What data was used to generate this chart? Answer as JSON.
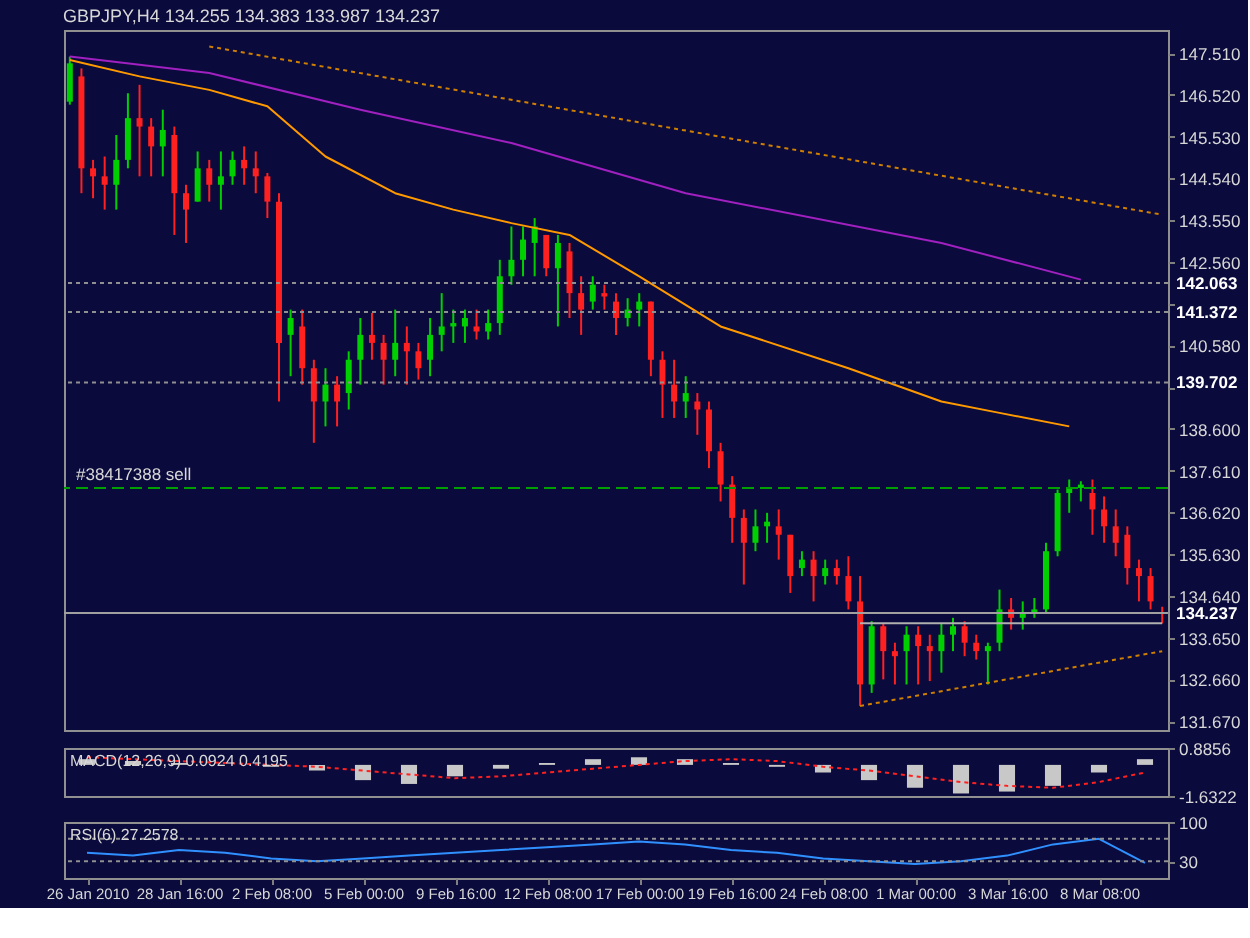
{
  "chart_data": [
    {
      "type": "candlestick",
      "title": "GBPJPY,H4  134.255 134.383 133.987 134.237",
      "tick_labels": "y",
      "categories": [
        null,
        null,
        null,
        null,
        null,
        null,
        null,
        null,
        null,
        null,
        null,
        null,
        null,
        null,
        null,
        null,
        null,
        null,
        null,
        null,
        null,
        null,
        null,
        null,
        null,
        null,
        null,
        null,
        null,
        null,
        null,
        null,
        null,
        null,
        null,
        null,
        null,
        null,
        null,
        null,
        null,
        null,
        null,
        null,
        null,
        null,
        null,
        null,
        null,
        null,
        null,
        null,
        null,
        null,
        null,
        null,
        null,
        null,
        null,
        null,
        null,
        null,
        null,
        null,
        null,
        null,
        null,
        null,
        null,
        null,
        null,
        null,
        null,
        null,
        null,
        null,
        null,
        null,
        null,
        null,
        null,
        null,
        null,
        null,
        null,
        null,
        null,
        null,
        null,
        null,
        null,
        null,
        null,
        null,
        null
      ],
      "colors": [
        "#00d000",
        "#ff2020",
        "#ff2020",
        "#ff2020",
        "#00d000",
        "#00d000",
        "#ff2020",
        "#ff2020",
        "#00d000",
        "#ff2020",
        "#ff2020",
        "#00d000",
        "#ff2020",
        "#00d000",
        "#00d000",
        "#ff2020",
        "#ff2020",
        "#ff2020",
        "#ff2020",
        "#00d000",
        "#ff2020",
        "#ff2020",
        "#00d000",
        "#ff2020",
        "#00d000",
        "#00d000",
        "#ff2020",
        "#ff2020",
        "#00d000",
        "#ff2020",
        "#ff2020",
        "#00d000",
        "#00d000",
        "#00d000",
        "#00d000",
        "#ff2020",
        "#00d000",
        "#00d000",
        "#00d000",
        "#00d000",
        "#00d000",
        "#ff2020",
        "#00d000",
        "#ff2020",
        "#ff2020",
        "#00d000",
        "#ff2020",
        "#ff2020",
        "#00d000",
        "#00d000",
        "#ff2020",
        "#ff2020",
        "#ff2020",
        "#00d000",
        "#ff2020",
        "#ff2020",
        "#ff2020",
        "#ff2020",
        "#ff2020",
        "#00d000",
        "#00d000",
        "#ff2020",
        "#ff2020",
        "#00d000",
        "#ff2020",
        "#00d000",
        "#ff2020",
        "#ff2020",
        "#ff2020",
        "#00d000",
        "#ff2020",
        "#ff2020",
        "#00d000",
        "#ff2020",
        "#ff2020",
        "#00d000",
        "#00d000",
        "#ff2020",
        "#ff2020",
        "#00d000",
        "#00d000",
        "#ff2020",
        "#00d000",
        "#00d000",
        "#00d000",
        "#00d000",
        "#00d000",
        "#00d000",
        "#ff2020",
        "#ff2020",
        "#ff2020",
        "#ff2020",
        "#ff2020",
        "#ff2020",
        "#ff2020"
      ],
      "ohlc": [
        [
          146.36,
          147.43,
          146.29,
          147.27
        ],
        [
          146.96,
          147.15,
          144.19,
          144.78
        ],
        [
          144.78,
          144.98,
          144.07,
          144.59
        ],
        [
          144.59,
          145.06,
          143.8,
          144.39
        ],
        [
          144.39,
          145.57,
          143.8,
          144.98
        ],
        [
          144.98,
          146.56,
          144.78,
          145.97
        ],
        [
          145.97,
          146.76,
          144.59,
          145.77
        ],
        [
          145.77,
          145.97,
          144.59,
          145.3
        ],
        [
          145.3,
          146.17,
          144.59,
          145.69
        ],
        [
          145.57,
          145.77,
          143.2,
          144.19
        ],
        [
          144.19,
          144.39,
          143.01,
          143.8
        ],
        [
          143.99,
          145.18,
          143.99,
          144.78
        ],
        [
          144.78,
          144.98,
          143.99,
          144.39
        ],
        [
          144.39,
          145.18,
          143.8,
          144.59
        ],
        [
          144.59,
          145.18,
          144.39,
          144.98
        ],
        [
          144.98,
          145.3,
          144.39,
          144.78
        ],
        [
          144.78,
          145.18,
          144.19,
          144.59
        ],
        [
          144.59,
          144.67,
          143.6,
          143.99
        ],
        [
          143.99,
          144.19,
          139.25,
          140.64
        ],
        [
          140.83,
          141.43,
          139.85,
          141.23
        ],
        [
          141.03,
          141.43,
          139.65,
          140.04
        ],
        [
          140.04,
          140.24,
          138.27,
          139.25
        ],
        [
          139.25,
          140.04,
          138.66,
          139.65
        ],
        [
          139.65,
          139.85,
          138.66,
          139.25
        ],
        [
          139.45,
          140.44,
          139.06,
          140.24
        ],
        [
          140.24,
          141.23,
          139.65,
          140.83
        ],
        [
          140.83,
          141.35,
          140.24,
          140.64
        ],
        [
          140.64,
          140.83,
          139.65,
          140.24
        ],
        [
          140.24,
          141.43,
          139.85,
          140.64
        ],
        [
          140.64,
          141.03,
          139.65,
          140.44
        ],
        [
          140.44,
          140.64,
          139.77,
          140.04
        ],
        [
          140.24,
          141.23,
          139.85,
          140.83
        ],
        [
          140.83,
          141.82,
          140.44,
          141.03
        ],
        [
          141.03,
          141.43,
          140.64,
          141.11
        ],
        [
          141.03,
          141.43,
          140.64,
          141.23
        ],
        [
          141.03,
          141.43,
          140.72,
          140.91
        ],
        [
          140.91,
          141.43,
          140.72,
          141.11
        ],
        [
          141.11,
          142.61,
          140.83,
          142.22
        ],
        [
          142.22,
          143.4,
          142.02,
          142.61
        ],
        [
          142.61,
          143.4,
          142.22,
          143.09
        ],
        [
          143.01,
          143.6,
          142.22,
          143.4
        ],
        [
          143.2,
          143.2,
          142.22,
          142.41
        ],
        [
          142.41,
          143.2,
          141.03,
          143.01
        ],
        [
          142.81,
          143.01,
          141.23,
          141.82
        ],
        [
          141.82,
          142.22,
          140.83,
          141.43
        ],
        [
          141.62,
          142.22,
          141.43,
          142.02
        ],
        [
          141.82,
          142.02,
          141.43,
          141.74
        ],
        [
          141.62,
          141.82,
          140.83,
          141.23
        ],
        [
          141.23,
          141.7,
          141.03,
          141.43
        ],
        [
          141.43,
          141.82,
          141.03,
          141.62
        ],
        [
          141.62,
          141.62,
          139.85,
          140.24
        ],
        [
          140.24,
          140.44,
          138.86,
          139.65
        ],
        [
          139.65,
          140.24,
          138.86,
          139.25
        ],
        [
          139.25,
          139.85,
          138.86,
          139.45
        ],
        [
          139.25,
          139.45,
          138.46,
          139.06
        ],
        [
          139.06,
          139.25,
          137.67,
          138.07
        ],
        [
          138.07,
          138.27,
          136.88,
          137.28
        ],
        [
          137.28,
          137.48,
          135.9,
          136.49
        ],
        [
          136.49,
          136.69,
          134.91,
          135.9
        ],
        [
          135.9,
          136.69,
          135.7,
          136.29
        ],
        [
          136.29,
          136.61,
          135.9,
          136.4
        ],
        [
          136.29,
          136.69,
          135.5,
          136.09
        ],
        [
          136.09,
          136.09,
          134.71,
          135.11
        ],
        [
          135.3,
          135.7,
          135.11,
          135.5
        ],
        [
          135.5,
          135.7,
          134.51,
          135.11
        ],
        [
          135.11,
          135.5,
          134.91,
          135.3
        ],
        [
          135.3,
          135.5,
          134.91,
          135.11
        ],
        [
          135.11,
          135.58,
          134.32,
          134.51
        ],
        [
          134.51,
          135.11,
          132.03,
          132.54
        ],
        [
          132.54,
          134.04,
          132.34,
          133.92
        ],
        [
          133.92,
          134.0,
          132.66,
          133.33
        ],
        [
          133.33,
          133.53,
          132.54,
          133.21
        ],
        [
          133.33,
          133.92,
          132.54,
          133.72
        ],
        [
          133.72,
          133.92,
          132.54,
          133.45
        ],
        [
          133.45,
          133.72,
          132.62,
          133.33
        ],
        [
          133.33,
          134.0,
          132.82,
          133.72
        ],
        [
          133.72,
          134.12,
          133.33,
          133.92
        ],
        [
          133.92,
          134.04,
          133.21,
          133.53
        ],
        [
          133.53,
          133.72,
          133.13,
          133.33
        ],
        [
          133.33,
          133.53,
          132.54,
          133.45
        ],
        [
          133.53,
          134.79,
          133.33,
          134.32
        ],
        [
          134.32,
          134.59,
          133.84,
          134.12
        ],
        [
          134.12,
          134.51,
          133.84,
          134.24
        ],
        [
          134.24,
          134.59,
          134.12,
          134.32
        ],
        [
          134.32,
          135.9,
          134.24,
          135.7
        ],
        [
          135.7,
          137.16,
          135.58,
          137.08
        ],
        [
          137.08,
          137.4,
          136.61,
          137.2
        ],
        [
          137.2,
          137.36,
          136.88,
          137.28
        ],
        [
          137.08,
          137.4,
          136.09,
          136.69
        ],
        [
          136.69,
          137.0,
          135.9,
          136.29
        ],
        [
          136.29,
          136.69,
          135.58,
          135.9
        ],
        [
          136.09,
          136.29,
          134.91,
          135.3
        ],
        [
          135.3,
          135.5,
          134.51,
          135.11
        ],
        [
          135.11,
          135.3,
          134.32,
          134.51
        ],
        [
          134.255,
          134.383,
          133.987,
          134.237
        ]
      ],
      "series": [
        {
          "type": "line",
          "color": "#ff9900",
          "line_style": "solid",
          "values": [
            147.35,
            null,
            null,
            null,
            null,
            null,
            146.96,
            null,
            null,
            null,
            null,
            null,
            146.64,
            null,
            null,
            null,
            null,
            146.25,
            null,
            null,
            null,
            null,
            145.06,
            null,
            null,
            null,
            null,
            null,
            144.19,
            null,
            null,
            null,
            null,
            143.8,
            null,
            null,
            null,
            null,
            143.48,
            null,
            null,
            null,
            null,
            143.2,
            null,
            null,
            null,
            null,
            null,
            142.22,
            null,
            null,
            null,
            null,
            null,
            null,
            141.03,
            null,
            null,
            null,
            null,
            null,
            null,
            null,
            null,
            null,
            null,
            140.04,
            null,
            null,
            null,
            null,
            null,
            null,
            null,
            139.25,
            null,
            null,
            null,
            null,
            138.98,
            null,
            null,
            null,
            null,
            null,
            138.66,
            null,
            null,
            null,
            null,
            null,
            null,
            null,
            null
          ]
        },
        {
          "type": "line",
          "color": "#a020c0",
          "line_style": "solid",
          "values": [
            147.43,
            null,
            null,
            null,
            null,
            null,
            null,
            null,
            null,
            null,
            null,
            null,
            147.04,
            null,
            null,
            null,
            null,
            null,
            null,
            null,
            null,
            null,
            null,
            null,
            null,
            146.17,
            null,
            null,
            null,
            null,
            null,
            null,
            null,
            null,
            null,
            null,
            null,
            null,
            145.38,
            null,
            null,
            null,
            null,
            null,
            null,
            null,
            null,
            null,
            null,
            null,
            null,
            null,
            null,
            144.19,
            null,
            null,
            null,
            null,
            null,
            null,
            null,
            null,
            null,
            null,
            null,
            null,
            null,
            null,
            null,
            null,
            null,
            null,
            null,
            null,
            null,
            143.01,
            null,
            null,
            null,
            null,
            null,
            null,
            null,
            null,
            null,
            null,
            null,
            142.14,
            null,
            null,
            null,
            null,
            null,
            null,
            null
          ]
        },
        {
          "type": "line",
          "color": "#d08000",
          "line_style": "dotted",
          "values": [
            null,
            null,
            null,
            null,
            null,
            null,
            null,
            null,
            null,
            null,
            null,
            null,
            147.67,
            null,
            null,
            null,
            null,
            null,
            null,
            null,
            null,
            null,
            null,
            null,
            null,
            null,
            null,
            null,
            null,
            null,
            null,
            null,
            null,
            null,
            null,
            null,
            null,
            null,
            null,
            null,
            null,
            null,
            null,
            null,
            null,
            null,
            null,
            null,
            null,
            null,
            null,
            null,
            null,
            null,
            null,
            null,
            null,
            null,
            null,
            null,
            null,
            null,
            null,
            null,
            null,
            null,
            null,
            null,
            null,
            null,
            null,
            null,
            null,
            null,
            null,
            null,
            null,
            null,
            null,
            null,
            null,
            null,
            null,
            null,
            null,
            null,
            null,
            null,
            null,
            null,
            null,
            null,
            null,
            null,
            143.68
          ]
        },
        {
          "type": "line",
          "color": "#d08000",
          "line_style": "dotted",
          "values": [
            null,
            null,
            null,
            null,
            null,
            null,
            null,
            null,
            null,
            null,
            null,
            null,
            null,
            null,
            null,
            null,
            null,
            null,
            null,
            null,
            null,
            null,
            null,
            null,
            null,
            null,
            null,
            null,
            null,
            null,
            null,
            null,
            null,
            null,
            null,
            null,
            null,
            null,
            null,
            null,
            null,
            null,
            null,
            null,
            null,
            null,
            null,
            null,
            null,
            null,
            null,
            null,
            null,
            null,
            null,
            null,
            null,
            null,
            null,
            null,
            null,
            null,
            null,
            null,
            null,
            null,
            null,
            null,
            132.03,
            null,
            null,
            null,
            null,
            null,
            null,
            null,
            null,
            null,
            null,
            null,
            null,
            null,
            null,
            null,
            null,
            null,
            null,
            null,
            null,
            null,
            null,
            null,
            null,
            null,
            133.33
          ]
        },
        {
          "type": "line",
          "color": "#b0b0b0",
          "line_style": "solid",
          "values": [
            null,
            null,
            null,
            null,
            null,
            null,
            null,
            null,
            null,
            null,
            null,
            null,
            null,
            null,
            null,
            null,
            null,
            null,
            null,
            null,
            null,
            null,
            null,
            null,
            null,
            null,
            null,
            null,
            null,
            null,
            null,
            null,
            null,
            null,
            null,
            null,
            null,
            null,
            null,
            null,
            null,
            null,
            null,
            null,
            null,
            null,
            null,
            null,
            null,
            null,
            null,
            null,
            null,
            null,
            null,
            null,
            null,
            null,
            null,
            null,
            null,
            null,
            null,
            null,
            null,
            null,
            null,
            null,
            133.99,
            null,
            null,
            null,
            null,
            null,
            null,
            null,
            null,
            null,
            null,
            null,
            null,
            null,
            null,
            null,
            null,
            null,
            null,
            null,
            null,
            null,
            null,
            null,
            null,
            null,
            133.99
          ]
        }
      ],
      "ref_lines": [
        {
          "axis": "y",
          "value": 142.063,
          "label": "142.063",
          "color": "#909090",
          "line_style": "dotted"
        },
        {
          "axis": "y",
          "value": 141.372,
          "label": "141.372",
          "color": "#909090",
          "line_style": "dotted"
        },
        {
          "axis": "y",
          "value": 139.702,
          "label": "139.702",
          "color": "#909090",
          "line_style": "dotted"
        },
        {
          "axis": "y",
          "value": 137.2,
          "color": "#00a000",
          "line_style": "dashed"
        },
        {
          "axis": "y",
          "value": 134.237,
          "label": "134.237",
          "color": "#a0a0a0",
          "line_style": "solid"
        }
      ],
      "annotations": [
        {
          "text": "#38417388 sell",
          "y": 137.2
        }
      ],
      "ylim": [
        131.46,
        148.06
      ],
      "yticks": [
        {
          "value": 147.51,
          "label": "147.510"
        },
        {
          "value": 146.52,
          "label": "146.520"
        },
        {
          "value": 145.53,
          "label": "145.530"
        },
        {
          "value": 144.54,
          "label": "144.540"
        },
        {
          "value": 143.55,
          "label": "143.550"
        },
        {
          "value": 142.56,
          "label": "142.560"
        },
        {
          "value": 141.57,
          "label": null
        },
        {
          "value": 140.58,
          "label": "140.580"
        },
        {
          "value": 139.59,
          "label": null
        },
        {
          "value": 138.6,
          "label": "138.600"
        },
        {
          "value": 137.61,
          "label": "137.610"
        },
        {
          "value": 136.62,
          "label": "136.620"
        },
        {
          "value": 135.63,
          "label": "135.630"
        },
        {
          "value": 134.64,
          "label": "134.640"
        },
        {
          "value": 133.65,
          "label": "133.650"
        },
        {
          "value": 132.66,
          "label": "132.660"
        },
        {
          "value": 131.67,
          "label": "131.670"
        }
      ]
    },
    {
      "type": "bar",
      "tick_labels": "y",
      "annotations": [
        "MACD(12,26,9) 0.0924 0.4195"
      ],
      "categories": [
        null,
        null,
        null,
        null,
        null,
        null,
        null,
        null,
        null,
        null,
        null,
        null,
        null,
        null,
        null,
        null,
        null,
        null,
        null,
        null,
        null,
        null,
        null,
        null
      ],
      "series": [
        {
          "type": "bar",
          "color": "#c8c8c8",
          "values": [
            0.3,
            0.2,
            0.1,
            0.0,
            -0.1,
            -0.3,
            -0.8,
            -1.0,
            -0.6,
            -0.2,
            0.1,
            0.3,
            0.4,
            0.3,
            0.1,
            -0.1,
            -0.4,
            -0.8,
            -1.2,
            -1.5,
            -1.4,
            -1.1,
            -0.4,
            0.3
          ]
        },
        {
          "type": "line",
          "color": "#ff2020",
          "line_style": "dotted",
          "values": [
            0.4,
            0.3,
            0.2,
            0.1,
            0.0,
            -0.1,
            -0.3,
            -0.5,
            -0.7,
            -0.6,
            -0.4,
            -0.2,
            0.0,
            0.2,
            0.3,
            0.2,
            -0.1,
            -0.3,
            -0.6,
            -0.9,
            -1.1,
            -1.2,
            -0.9,
            -0.4
          ]
        }
      ],
      "ylim": [
        -1.6322,
        0.8856
      ],
      "yticks": [
        0.8856,
        -1.6322
      ]
    },
    {
      "type": "line",
      "annotations": [
        "RSI(6) 27.2578"
      ],
      "categories": [
        "26 Jan 2010",
        null,
        "28 Jan 16:00",
        null,
        "2 Feb 08:00",
        null,
        "5 Feb 00:00",
        null,
        "9 Feb 16:00",
        null,
        "12 Feb 08:00",
        null,
        "17 Feb 00:00",
        null,
        "19 Feb 16:00",
        null,
        "24 Feb 08:00",
        null,
        "1 Mar 00:00",
        null,
        "3 Mar 16:00",
        null,
        "8 Mar 08:00",
        null
      ],
      "series": [
        {
          "color": "#3090ff",
          "line_style": "solid",
          "values": [
            45,
            40,
            50,
            45,
            35,
            30,
            35,
            40,
            45,
            50,
            55,
            60,
            65,
            60,
            50,
            45,
            35,
            30,
            25,
            30,
            40,
            60,
            70,
            27
          ]
        }
      ],
      "ref_lines": [
        {
          "axis": "y",
          "value": 70,
          "color": "#909090",
          "line_style": "dotted"
        },
        {
          "axis": "y",
          "value": 30,
          "color": "#909090",
          "line_style": "dotted"
        }
      ],
      "ylim": [
        0,
        100
      ],
      "yticks": [
        100,
        30
      ]
    }
  ]
}
